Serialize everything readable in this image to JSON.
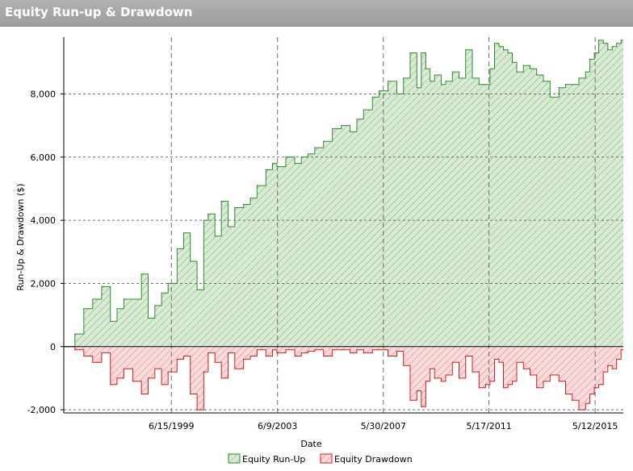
{
  "window": {
    "title": "Equity Run-up & Drawdown"
  },
  "colors": {
    "runup_line": "#2e8b2e",
    "runup_fill": "#d8ecd4",
    "runup_hatch": "#7fa87a",
    "drawdown_line": "#e01818",
    "drawdown_fill": "#fbdcdc",
    "drawdown_hatch": "#e07878",
    "grid": "#6e6e6e",
    "title_bar": "#a8a8a8"
  },
  "chart_data": {
    "type": "area",
    "title": "Equity Run-up & Drawdown",
    "xlabel": "Date",
    "ylabel": "Run-Up & Drawdown ($)",
    "xlim": [
      "6/1/1995",
      "6/1/2016"
    ],
    "ylim": [
      -2100,
      9800
    ],
    "y_ticks": [
      -2000,
      0,
      2000,
      4000,
      6000,
      8000
    ],
    "y_tick_labels": [
      "-2,000",
      "0",
      "2,000",
      "4,000",
      "6,000",
      "8,000"
    ],
    "x_ticks": [
      "6/15/1999",
      "6/9/2003",
      "5/30/2007",
      "5/17/2011",
      "5/12/2015"
    ],
    "x_tick_labels": [
      "6/15/1999",
      "6/9/2003",
      "5/30/2007",
      "5/17/2011",
      "5/12/2015"
    ],
    "grid": true,
    "legend_position": "bottom-center",
    "series": [
      {
        "name": "Equity Run-Up",
        "x": [
          "6/1/1995",
          "11/1/1995",
          "3/1/1996",
          "7/1/1996",
          "11/1/1996",
          "3/1/1997",
          "6/1/1997",
          "9/1/1997",
          "1/1/1998",
          "5/1/1998",
          "8/1/1998",
          "11/1/1998",
          "2/1/1999",
          "5/1/1999",
          "9/1/1999",
          "12/1/1999",
          "3/1/2000",
          "6/1/2000",
          "9/1/2000",
          "11/1/2000",
          "2/1/2001",
          "5/1/2001",
          "8/1/2001",
          "11/1/2001",
          "3/1/2002",
          "6/1/2002",
          "9/1/2002",
          "1/1/2003",
          "4/1/2003",
          "6/1/2003",
          "10/1/2003",
          "2/1/2004",
          "5/1/2004",
          "8/1/2004",
          "11/1/2004",
          "3/1/2005",
          "7/1/2005",
          "11/1/2005",
          "3/1/2006",
          "6/1/2006",
          "9/1/2006",
          "1/1/2007",
          "4/1/2007",
          "8/1/2007",
          "12/1/2007",
          "3/1/2008",
          "6/1/2008",
          "9/1/2008",
          "11/1/2008",
          "1/1/2009",
          "3/1/2009",
          "5/1/2009",
          "8/1/2009",
          "10/1/2009",
          "1/1/2010",
          "4/1/2010",
          "7/1/2010",
          "10/1/2010",
          "1/1/2011",
          "4/1/2011",
          "6/1/2011",
          "8/1/2011",
          "10/1/2011",
          "12/1/2011",
          "2/1/2012",
          "4/1/2012",
          "6/1/2012",
          "9/1/2012",
          "12/1/2012",
          "3/1/2013",
          "6/1/2013",
          "9/1/2013",
          "1/1/2014",
          "4/1/2014",
          "7/1/2014",
          "10/1/2014",
          "1/1/2015",
          "3/1/2015",
          "5/1/2015",
          "7/1/2015",
          "9/1/2015",
          "11/1/2015",
          "1/1/2016",
          "3/1/2016",
          "5/1/2016"
        ],
        "values": [
          0,
          400,
          1200,
          1500,
          1900,
          800,
          1200,
          1500,
          1500,
          2300,
          900,
          1300,
          1700,
          2000,
          3100,
          3600,
          2700,
          1800,
          4000,
          4200,
          3500,
          4600,
          3800,
          4400,
          4500,
          4700,
          5100,
          5600,
          5800,
          5700,
          6000,
          5800,
          6000,
          6100,
          6300,
          6500,
          6900,
          7000,
          6800,
          7200,
          7500,
          7900,
          8100,
          8400,
          8000,
          8500,
          9300,
          8200,
          9300,
          8800,
          8400,
          8600,
          8300,
          8400,
          8700,
          8500,
          9400,
          8500,
          8300,
          8300,
          8800,
          9600,
          9500,
          9400,
          9300,
          9000,
          8700,
          8900,
          8800,
          8600,
          8400,
          7900,
          8200,
          8300,
          8300,
          8500,
          8700,
          9100,
          9300,
          9700,
          9600,
          9400,
          9500,
          9600,
          9700
        ]
      },
      {
        "name": "Equity Drawdown",
        "x": [
          "6/1/1995",
          "11/1/1995",
          "3/1/1996",
          "7/1/1996",
          "11/1/1996",
          "3/1/1997",
          "6/1/1997",
          "9/1/1997",
          "1/1/1998",
          "5/1/1998",
          "8/1/1998",
          "11/1/1998",
          "2/1/1999",
          "5/1/1999",
          "9/1/1999",
          "12/1/1999",
          "3/1/2000",
          "6/1/2000",
          "9/1/2000",
          "11/1/2000",
          "2/1/2001",
          "5/1/2001",
          "8/1/2001",
          "11/1/2001",
          "3/1/2002",
          "6/1/2002",
          "9/1/2002",
          "1/1/2003",
          "4/1/2003",
          "6/1/2003",
          "10/1/2003",
          "2/1/2004",
          "5/1/2004",
          "8/1/2004",
          "11/1/2004",
          "3/1/2005",
          "7/1/2005",
          "11/1/2005",
          "3/1/2006",
          "6/1/2006",
          "9/1/2006",
          "1/1/2007",
          "4/1/2007",
          "8/1/2007",
          "12/1/2007",
          "3/1/2008",
          "6/1/2008",
          "9/1/2008",
          "11/1/2008",
          "1/1/2009",
          "3/1/2009",
          "5/1/2009",
          "8/1/2009",
          "10/1/2009",
          "1/1/2010",
          "4/1/2010",
          "7/1/2010",
          "10/1/2010",
          "1/1/2011",
          "4/1/2011",
          "6/1/2011",
          "8/1/2011",
          "10/1/2011",
          "12/1/2011",
          "2/1/2012",
          "4/1/2012",
          "6/1/2012",
          "9/1/2012",
          "12/1/2012",
          "3/1/2013",
          "6/1/2013",
          "9/1/2013",
          "1/1/2014",
          "4/1/2014",
          "7/1/2014",
          "10/1/2014",
          "1/1/2015",
          "3/1/2015",
          "5/1/2015",
          "7/1/2015",
          "9/1/2015",
          "11/1/2015",
          "1/1/2016",
          "3/1/2016",
          "5/1/2016"
        ],
        "values": [
          0,
          -100,
          -300,
          -500,
          -200,
          -1200,
          -1000,
          -700,
          -1100,
          -1500,
          -1000,
          -700,
          -1200,
          -800,
          -400,
          -300,
          -1500,
          -2000,
          -800,
          -200,
          -500,
          -1000,
          -200,
          -700,
          -400,
          -300,
          -100,
          -300,
          -100,
          -200,
          -100,
          -300,
          -200,
          -150,
          -100,
          -300,
          -100,
          -100,
          -200,
          -100,
          -200,
          -100,
          -100,
          -300,
          -150,
          -600,
          -1700,
          -1400,
          -1900,
          -1100,
          -700,
          -1000,
          -1100,
          -900,
          -500,
          -1000,
          -300,
          -800,
          -1300,
          -1200,
          -1100,
          -400,
          -500,
          -1300,
          -1200,
          -1100,
          -500,
          -700,
          -900,
          -1300,
          -1100,
          -900,
          -1100,
          -1500,
          -1700,
          -2000,
          -1800,
          -1500,
          -1300,
          -1200,
          -800,
          -600,
          -700,
          -400,
          -100
        ]
      }
    ]
  }
}
